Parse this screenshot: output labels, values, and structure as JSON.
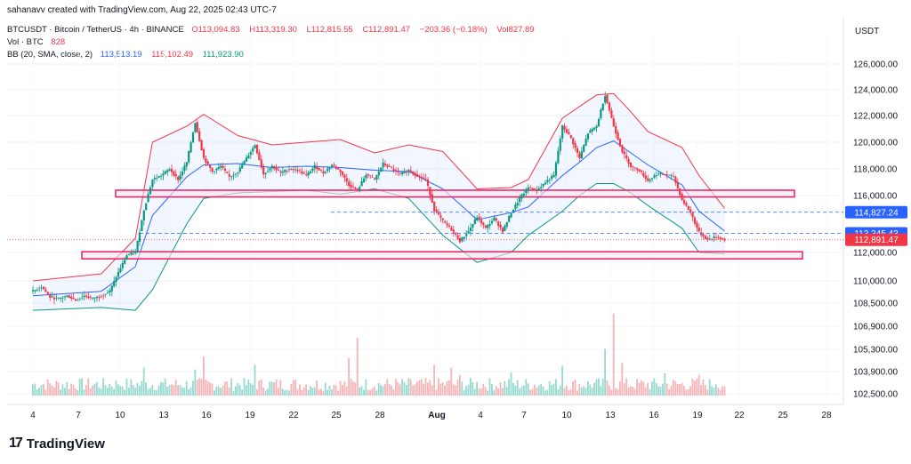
{
  "credit": "sahanavv created with TradingView.com, Aug 22, 2025 02:43 UTC-7",
  "legend": {
    "symbol": "BTCUSDT · Bitcoin / TetherUS · 4h · BINANCE",
    "o": "O113,094.83",
    "h": "H113,319.30",
    "l": "L112,815.55",
    "c": "C112,891.47",
    "chg": "−203.36 (−0.18%)",
    "vol": "Vol827.89",
    "vol_label": "Vol · BTC",
    "vol_value": "828",
    "bb_label": "BB (20, SMA, close, 2)",
    "bb_basis": "113,513.19",
    "bb_upper": "115,102.49",
    "bb_lower": "111,923.90"
  },
  "brand": {
    "logo": "17",
    "name": "TradingView"
  },
  "chart_data": {
    "type": "candlestick",
    "quote_currency": "USDT",
    "price_axis_ticks": [
      126000,
      124000,
      122000,
      120000,
      118000,
      116000,
      112000,
      110000,
      108500,
      106900,
      105300,
      103900,
      102500
    ],
    "price_axis_tick_labels": [
      "126,000.00",
      "124,000.00",
      "122,000.00",
      "120,000.00",
      "118,000.00",
      "116,000.00",
      "112,000.00",
      "110,000.00",
      "108,500.00",
      "106,900.00",
      "105,300.00",
      "103,900.00",
      "102,500.00"
    ],
    "x_tick_labels": [
      "4",
      "7",
      "10",
      "13",
      "16",
      "19",
      "22",
      "25",
      "28",
      "Aug",
      "4",
      "7",
      "10",
      "13",
      "16",
      "19",
      "22",
      "25",
      "28"
    ],
    "price_labels": [
      {
        "value": 114827.24,
        "text": "114,827.24",
        "color": "#2962ff",
        "line": "dashed"
      },
      {
        "value": 113345.43,
        "text": "113,345.43",
        "color": "#2962ff",
        "line": "dashed"
      },
      {
        "value": 112891.47,
        "text": "112,891.47",
        "color": "#f23645",
        "line": "dotted"
      }
    ],
    "zones": [
      {
        "from_tick": "10",
        "to_tick": "25",
        "low": 115900,
        "high": 116400,
        "color": "#e91e63"
      },
      {
        "from_tick": "7",
        "to_tick": "25",
        "low": 111550,
        "high": 112050,
        "color": "#e91e63"
      }
    ],
    "close_path": [
      [
        0,
        109300
      ],
      [
        1,
        109600
      ],
      [
        2,
        108900
      ],
      [
        3,
        108800
      ],
      [
        4,
        109000
      ],
      [
        5,
        108700
      ],
      [
        6,
        109000
      ],
      [
        7,
        108800
      ],
      [
        8,
        109000
      ],
      [
        9,
        109300
      ],
      [
        10,
        110600
      ],
      [
        11,
        111800
      ],
      [
        12,
        112000
      ],
      [
        13,
        115000
      ],
      [
        14,
        117200
      ],
      [
        15,
        117500
      ],
      [
        16,
        118000
      ],
      [
        17,
        117200
      ],
      [
        18,
        118500
      ],
      [
        19,
        121500
      ],
      [
        20,
        118800
      ],
      [
        21,
        117800
      ],
      [
        22,
        118200
      ],
      [
        23,
        117400
      ],
      [
        24,
        117800
      ],
      [
        25,
        118800
      ],
      [
        26,
        119800
      ],
      [
        27,
        117600
      ],
      [
        28,
        118200
      ],
      [
        29,
        117700
      ],
      [
        30,
        118000
      ],
      [
        31,
        117900
      ],
      [
        32,
        117500
      ],
      [
        33,
        118200
      ],
      [
        34,
        117700
      ],
      [
        35,
        118300
      ],
      [
        36,
        117800
      ],
      [
        37,
        116800
      ],
      [
        38,
        116400
      ],
      [
        39,
        117600
      ],
      [
        40,
        117200
      ],
      [
        41,
        118400
      ],
      [
        42,
        118000
      ],
      [
        43,
        117600
      ],
      [
        44,
        117900
      ],
      [
        45,
        117500
      ],
      [
        46,
        117200
      ],
      [
        47,
        115000
      ],
      [
        48,
        114200
      ],
      [
        49,
        113600
      ],
      [
        50,
        112800
      ],
      [
        51,
        113500
      ],
      [
        52,
        114500
      ],
      [
        53,
        113700
      ],
      [
        54,
        114400
      ],
      [
        55,
        113500
      ],
      [
        56,
        114800
      ],
      [
        57,
        115800
      ],
      [
        58,
        116600
      ],
      [
        59,
        116400
      ],
      [
        60,
        117000
      ],
      [
        61,
        117500
      ],
      [
        62,
        121200
      ],
      [
        63,
        120300
      ],
      [
        64,
        118800
      ],
      [
        65,
        120700
      ],
      [
        66,
        121200
      ],
      [
        67,
        123600
      ],
      [
        68,
        121200
      ],
      [
        69,
        119300
      ],
      [
        70,
        118200
      ],
      [
        71,
        117900
      ],
      [
        72,
        117100
      ],
      [
        73,
        117600
      ],
      [
        74,
        117600
      ],
      [
        75,
        117400
      ],
      [
        76,
        115700
      ],
      [
        77,
        114800
      ],
      [
        78,
        113400
      ],
      [
        79,
        112900
      ],
      [
        80,
        113100
      ],
      [
        81,
        112900
      ]
    ],
    "bollinger": {
      "period": 20,
      "mult": 2,
      "upper": [
        [
          0,
          110000
        ],
        [
          8,
          110500
        ],
        [
          12,
          113000
        ],
        [
          14,
          120000
        ],
        [
          18,
          121200
        ],
        [
          20,
          122100
        ],
        [
          24,
          120500
        ],
        [
          28,
          119800
        ],
        [
          32,
          120000
        ],
        [
          36,
          120200
        ],
        [
          40,
          119200
        ],
        [
          44,
          119800
        ],
        [
          48,
          119300
        ],
        [
          52,
          116500
        ],
        [
          56,
          116600
        ],
        [
          58,
          117200
        ],
        [
          62,
          121800
        ],
        [
          64,
          122700
        ],
        [
          66,
          123600
        ],
        [
          68,
          123700
        ],
        [
          70,
          122300
        ],
        [
          72,
          120800
        ],
        [
          76,
          119600
        ],
        [
          78,
          117500
        ],
        [
          81,
          115100
        ]
      ],
      "basis": [
        [
          0,
          109000
        ],
        [
          8,
          109300
        ],
        [
          12,
          111000
        ],
        [
          14,
          114600
        ],
        [
          18,
          117400
        ],
        [
          20,
          118300
        ],
        [
          24,
          118400
        ],
        [
          28,
          118100
        ],
        [
          32,
          118200
        ],
        [
          36,
          118100
        ],
        [
          40,
          117900
        ],
        [
          44,
          117800
        ],
        [
          48,
          116500
        ],
        [
          52,
          114300
        ],
        [
          56,
          114800
        ],
        [
          58,
          115200
        ],
        [
          62,
          117500
        ],
        [
          64,
          118500
        ],
        [
          66,
          119600
        ],
        [
          68,
          120100
        ],
        [
          70,
          119200
        ],
        [
          72,
          118300
        ],
        [
          76,
          116800
        ],
        [
          78,
          114900
        ],
        [
          81,
          113500
        ]
      ],
      "lower": [
        [
          0,
          108000
        ],
        [
          8,
          108200
        ],
        [
          12,
          108000
        ],
        [
          14,
          109400
        ],
        [
          18,
          114000
        ],
        [
          20,
          115800
        ],
        [
          24,
          116200
        ],
        [
          28,
          116300
        ],
        [
          32,
          116400
        ],
        [
          36,
          116100
        ],
        [
          40,
          116500
        ],
        [
          44,
          115800
        ],
        [
          48,
          113200
        ],
        [
          52,
          111300
        ],
        [
          56,
          112000
        ],
        [
          58,
          113200
        ],
        [
          62,
          114900
        ],
        [
          64,
          116000
        ],
        [
          66,
          116900
        ],
        [
          68,
          116900
        ],
        [
          70,
          116200
        ],
        [
          72,
          115300
        ],
        [
          76,
          113700
        ],
        [
          78,
          112000
        ],
        [
          81,
          111900
        ]
      ]
    },
    "volume": [
      {
        "i": 10,
        "v": 0.12
      },
      {
        "i": 13,
        "v": 0.3
      },
      {
        "i": 19,
        "v": 0.28
      },
      {
        "i": 20,
        "v": 0.42
      },
      {
        "i": 26,
        "v": 0.33
      },
      {
        "i": 37,
        "v": 0.4
      },
      {
        "i": 38,
        "v": 0.62
      },
      {
        "i": 47,
        "v": 0.33
      },
      {
        "i": 49,
        "v": 0.3
      },
      {
        "i": 50,
        "v": 0.22
      },
      {
        "i": 56,
        "v": 0.25
      },
      {
        "i": 62,
        "v": 0.32
      },
      {
        "i": 67,
        "v": 0.5
      },
      {
        "i": 68,
        "v": 0.88
      },
      {
        "i": 69,
        "v": 0.35
      },
      {
        "i": 74,
        "v": 0.24
      },
      {
        "i": 78,
        "v": 0.22
      },
      {
        "i": 80,
        "v": 0.12
      }
    ]
  }
}
